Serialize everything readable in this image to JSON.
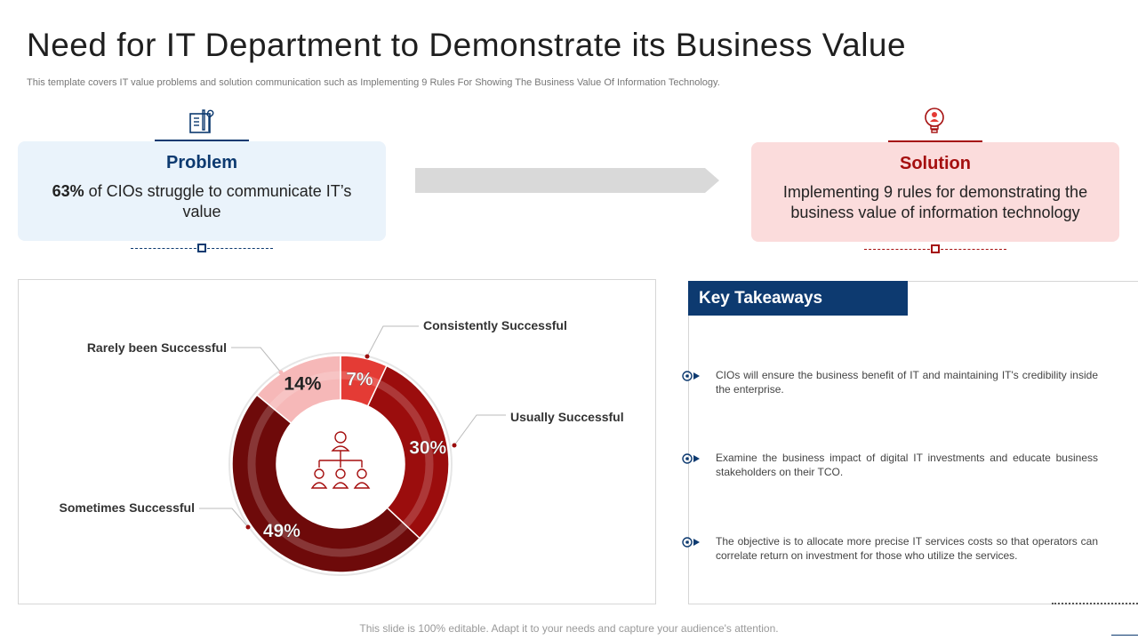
{
  "header": {
    "title": "Need for IT Department to Demonstrate its Business Value",
    "subtitle": "This template covers IT value problems and solution communication such as Implementing 9 Rules For Showing The Business Value Of Information Technology."
  },
  "problem": {
    "heading": "Problem",
    "highlight": "63%",
    "text_rest": " of CIOs struggle to communicate IT’s value",
    "icon": "tools-document-icon"
  },
  "solution": {
    "heading": "Solution",
    "text": "Implementing 9 rules for demonstrating the business value of information technology",
    "icon": "lightbulb-person-icon"
  },
  "colors": {
    "navy": "#0d3a70",
    "dark_red": "#a50f0f",
    "bright_red": "#e43b35",
    "medium_red": "#9b0d0d",
    "deep_red": "#6e0a0a",
    "pink": "#f6b8b8"
  },
  "chart_data": {
    "type": "pie",
    "labels": [
      "Consistently Successful",
      "Usually Successful",
      "Sometimes Successful",
      "Rarely been Successful"
    ],
    "values": [
      7,
      30,
      49,
      14
    ],
    "value_labels": [
      "7%",
      "30%",
      "49%",
      "14%"
    ],
    "colors": [
      "#e43b35",
      "#9b0d0d",
      "#6e0a0a",
      "#f6b8b8"
    ],
    "center_icon": "org-chart-icon"
  },
  "takeaways": {
    "title": "Key Takeaways",
    "items": [
      "CIOs will ensure the business benefit of IT and maintaining IT's credibility inside the enterprise.",
      "Examine the business impact of digital IT investments and educate business stakeholders on their TCO.",
      "The objective is to allocate more precise IT services costs so that operators can correlate return on investment for those who utilize the services."
    ]
  },
  "footer": {
    "text": "This slide is 100% editable. Adapt it to your needs and capture your audience's attention."
  }
}
